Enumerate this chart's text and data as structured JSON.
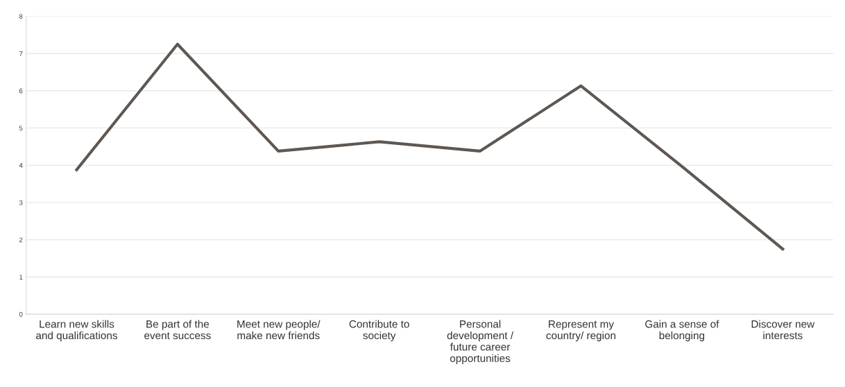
{
  "chart_data": {
    "type": "line",
    "categories": [
      "Learn new skills\nand qualifications",
      "Be part of the\nevent success",
      "Meet new people/\nmake new friends",
      "Contribute to\nsociety",
      "Personal\ndevelopment /\nfuture career\nopportunities",
      "Represent my\ncountry/ region",
      "Gain a sense of\nbelonging",
      "Discover new\ninterests"
    ],
    "series": [
      {
        "color": "#5f5752",
        "values": [
          3.88,
          7.25,
          4.38,
          4.63,
          4.38,
          6.13,
          3.97,
          1.75
        ]
      }
    ],
    "ylim": [
      0,
      8
    ],
    "yticks": [
      0,
      1,
      2,
      3,
      4,
      5,
      6,
      7,
      8
    ],
    "grid": "y",
    "marker": "none",
    "line_style": "solid"
  }
}
